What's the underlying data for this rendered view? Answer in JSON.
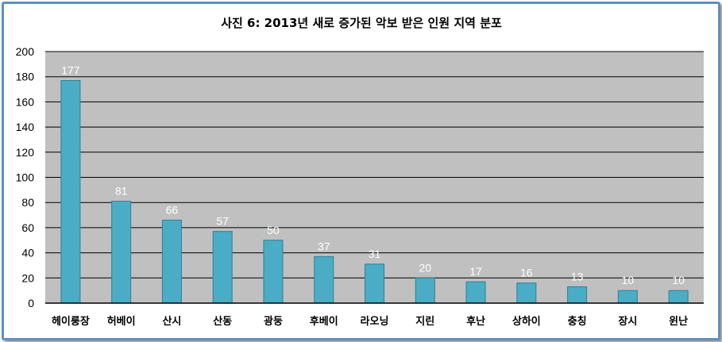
{
  "chart_data": {
    "type": "bar",
    "title": "사진 6: 2013년 새로 증가된 악보 받은 인원 지역 분포",
    "categories": [
      "헤이룽장",
      "허베이",
      "산시",
      "산동",
      "광둥",
      "후베이",
      "라오닝",
      "지린",
      "후난",
      "상하이",
      "충칭",
      "장시",
      "윈난"
    ],
    "values": [
      177,
      81,
      66,
      57,
      50,
      37,
      31,
      20,
      17,
      16,
      13,
      10,
      10
    ],
    "ylim": [
      0,
      200
    ],
    "yticks": [
      0,
      20,
      40,
      60,
      80,
      100,
      120,
      140,
      160,
      180,
      200
    ],
    "xlabel": "",
    "ylabel": "",
    "grid": true,
    "legend": "none",
    "colors": {
      "bar": "#4bacc6",
      "bar_edge": "#2f7f96",
      "plot_bg": "#c0c0c0",
      "gridline": "#000000",
      "data_label": "#ffffff",
      "frame": "#5f8fbf"
    }
  }
}
